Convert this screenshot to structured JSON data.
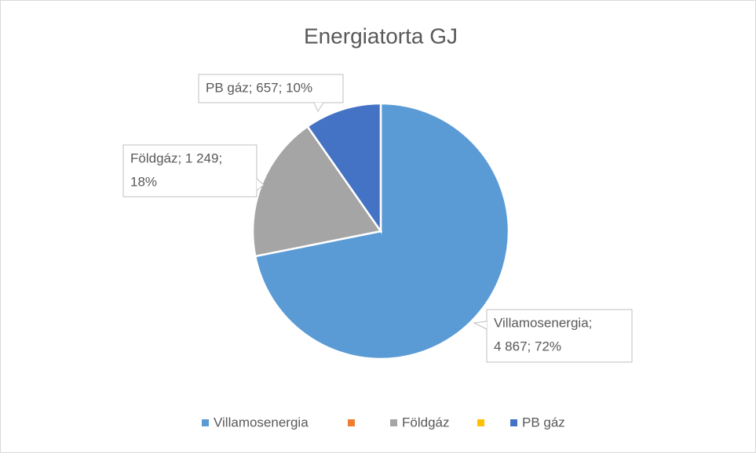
{
  "chart_data": {
    "type": "pie",
    "title": "Energiatorta GJ",
    "categories": [
      "Villamosenergia",
      null,
      "Földgáz",
      null,
      "PB gáz"
    ],
    "values": [
      4867,
      0,
      1249,
      0,
      657
    ],
    "colors": [
      "#5b9bd5",
      "#ed7d31",
      "#a5a5a5",
      "#ffc000",
      "#4472c4"
    ],
    "data_labels": [
      [
        "Villamosenergia;",
        "4 867; 72%"
      ],
      null,
      [
        "Földgáz; 1 249;",
        "18%"
      ],
      null,
      [
        "PB gáz; 657; 10%"
      ]
    ],
    "legend": "bottom"
  }
}
